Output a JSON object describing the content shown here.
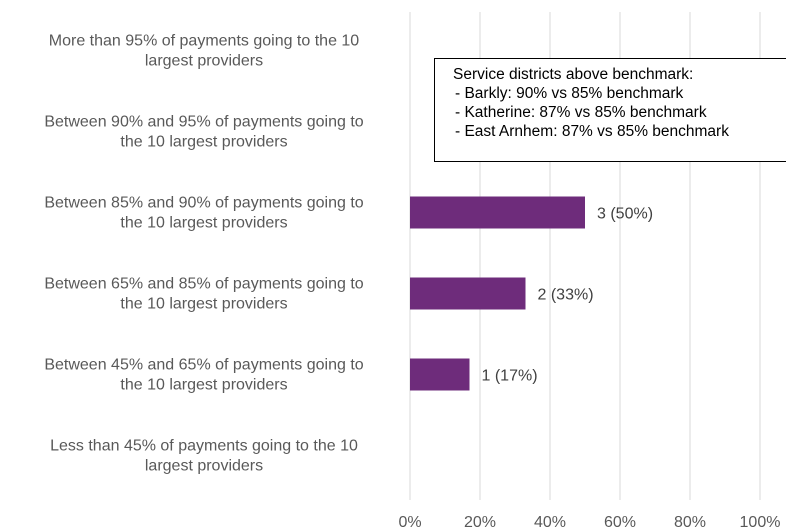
{
  "chart_data": {
    "type": "bar",
    "orientation": "horizontal",
    "categories": [
      [
        "More than 95% of payments going to the 10",
        "largest providers"
      ],
      [
        "Between 90% and 95% of payments going to",
        "the 10 largest providers"
      ],
      [
        "Between 85% and 90% of payments going to",
        "the 10 largest providers"
      ],
      [
        "Between 65% and 85% of payments going to",
        "the 10 largest providers"
      ],
      [
        "Between 45% and 65% of payments going to",
        "the 10 largest providers"
      ],
      [
        "Less than 45% of payments going to the 10",
        "largest providers"
      ]
    ],
    "values": [
      0,
      0,
      0.5,
      0.33,
      0.17,
      0
    ],
    "data_labels": [
      "",
      "",
      "3 (50%)",
      "2 (33%)",
      "1 (17%)",
      ""
    ],
    "xlim": [
      0,
      1
    ],
    "x_ticks": [
      "0%",
      "20%",
      "40%",
      "60%",
      "80%",
      "100%"
    ],
    "grid": true,
    "bar_color": "#6E2C7B",
    "gridline_color": "#D9D9D9",
    "title": "",
    "xlabel": "",
    "ylabel": ""
  },
  "annotation": {
    "heading": "Service districts above benchmark:",
    "items": [
      "- Barkly: 90% vs 85% benchmark",
      "- Katherine: 87% vs 85% benchmark",
      "- East Arnhem: 87% vs 85% benchmark"
    ]
  }
}
